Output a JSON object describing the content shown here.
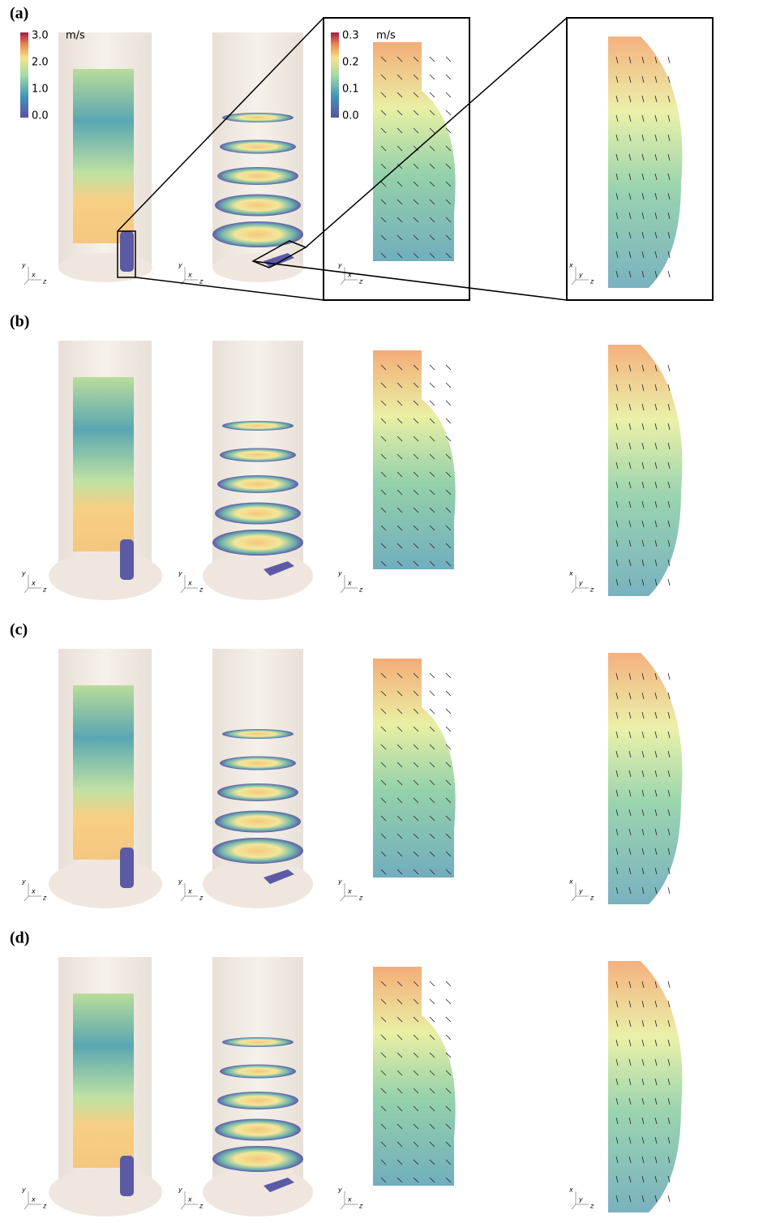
{
  "panels": [
    {
      "label": "(a)",
      "views": [
        {
          "axes": [
            "y",
            "x",
            "z"
          ]
        },
        {
          "axes": [
            "y",
            "x",
            "z"
          ]
        },
        {
          "axes": [
            "y",
            "x",
            "z"
          ]
        },
        {
          "axes": [
            "x",
            "y",
            "z"
          ]
        }
      ]
    },
    {
      "label": "(b)",
      "views": [
        {
          "axes": [
            "y",
            "x",
            "z"
          ]
        },
        {
          "axes": [
            "y",
            "x",
            "z"
          ]
        },
        {
          "axes": [
            "y",
            "x",
            "z"
          ]
        },
        {
          "axes": [
            "x",
            "y",
            "z"
          ]
        }
      ]
    },
    {
      "label": "(c)",
      "views": [
        {
          "axes": [
            "y",
            "x",
            "z"
          ]
        },
        {
          "axes": [
            "y",
            "x",
            "z"
          ]
        },
        {
          "axes": [
            "y",
            "x",
            "z"
          ]
        },
        {
          "axes": [
            "x",
            "y",
            "z"
          ]
        }
      ]
    },
    {
      "label": "(d)",
      "views": [
        {
          "axes": [
            "y",
            "x",
            "z"
          ]
        },
        {
          "axes": [
            "y",
            "x",
            "z"
          ]
        },
        {
          "axes": [
            "y",
            "x",
            "z"
          ]
        },
        {
          "axes": [
            "x",
            "y",
            "z"
          ]
        }
      ]
    }
  ],
  "colorbars": [
    {
      "unit": "m/s",
      "ticks": [
        "3.0",
        "2.0",
        "1.0",
        "0.0"
      ]
    },
    {
      "unit": "m/s",
      "ticks": [
        "0.3",
        "0.2",
        "0.1",
        "0.0"
      ]
    }
  ]
}
